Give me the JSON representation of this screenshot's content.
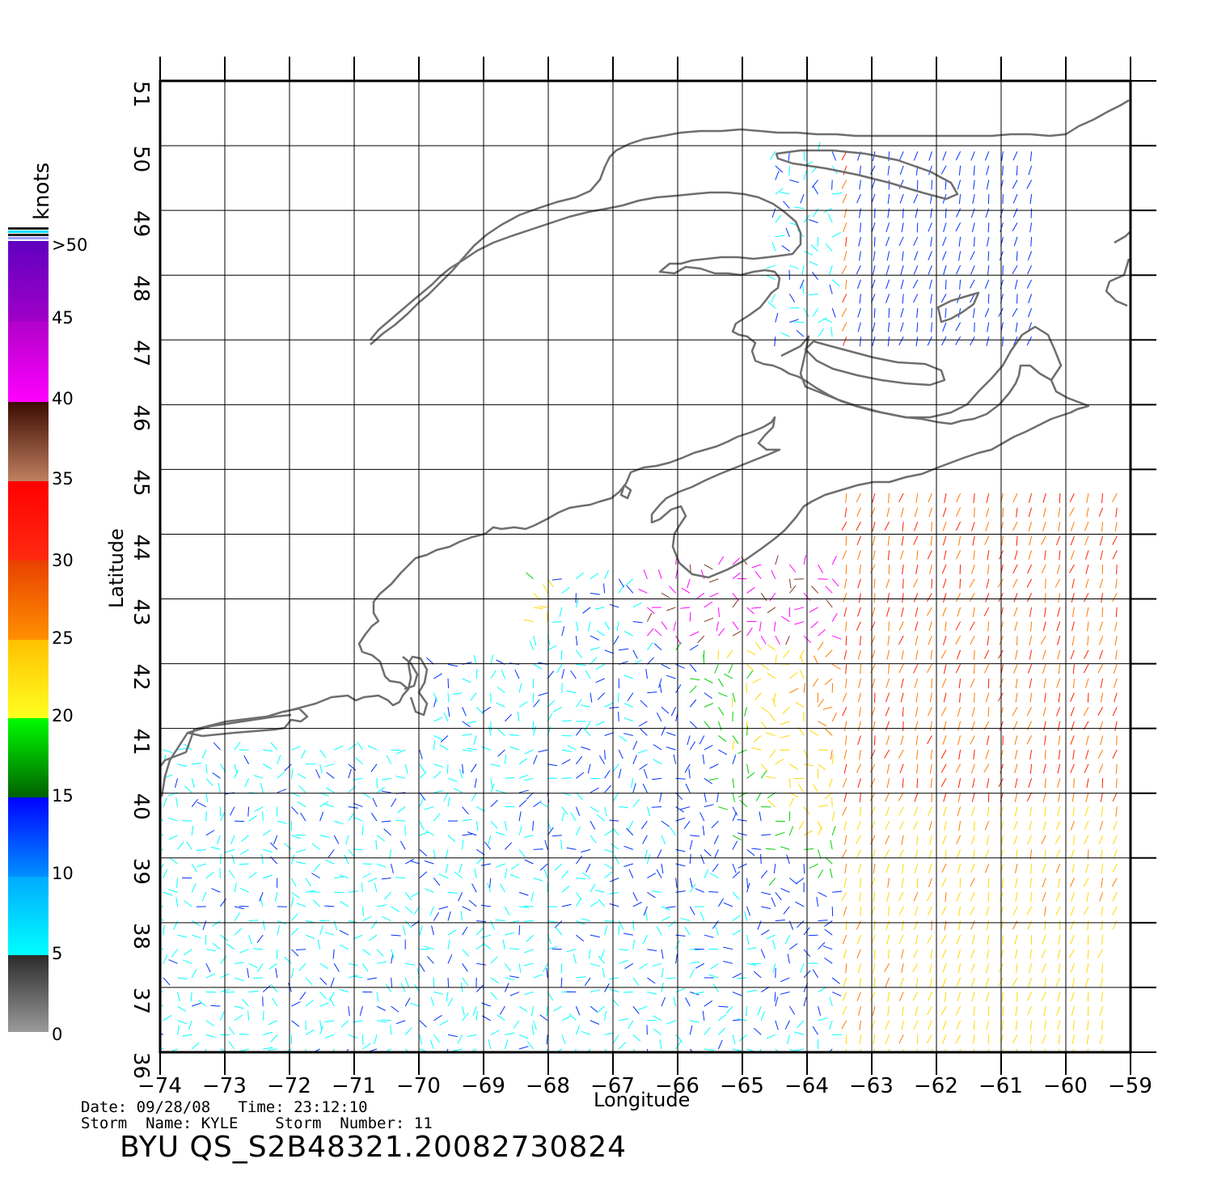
{
  "map": {
    "lon_ticks": [
      "−74",
      "−73",
      "−72",
      "−71",
      "−70",
      "−69",
      "−68",
      "−67",
      "−66",
      "−65",
      "−64",
      "−63",
      "−62",
      "−61",
      "−60",
      "−59"
    ],
    "lat_ticks": [
      "36",
      "37",
      "38",
      "39",
      "40",
      "41",
      "42",
      "43",
      "44",
      "45",
      "46",
      "47",
      "48",
      "49",
      "50",
      "51"
    ],
    "lon_range": [
      -74,
      -59
    ],
    "lat_range": [
      36,
      51
    ],
    "xlabel": "Longitude",
    "ylabel": "Latitude",
    "grid": true,
    "land_outline_color": "#6e6e6e"
  },
  "colorbar": {
    "unit_label": "knots",
    "labels": [
      ">50",
      "45",
      "40",
      "35",
      "30",
      "25",
      "20",
      "15",
      "10",
      "5",
      "0"
    ],
    "bins": [
      {
        "range": "0-5",
        "color": "#6a6a6a"
      },
      {
        "range": "5-10",
        "color": "#00ffff"
      },
      {
        "range": "10-15",
        "color": "#0078ff"
      },
      {
        "range": "15-20",
        "color": "#00d000"
      },
      {
        "range": "20-25",
        "color": "#ffd800"
      },
      {
        "range": "25-30",
        "color": "#ff7a00"
      },
      {
        "range": "30-35",
        "color": "#ff2000"
      },
      {
        "range": "35-40",
        "color": "#7a3a20"
      },
      {
        "range": "40-45",
        "color": "#ff00ff"
      },
      {
        "range": "45-50",
        "color": "#9a00cc"
      },
      {
        "range": ">50",
        "color": "#6a00c8"
      }
    ],
    "rain_flag_colors": [
      "#202020",
      "#00e0ff"
    ]
  },
  "footer": {
    "date_line": "Date: 09/28/08   Time: 23:12:10",
    "storm_line": "Storm  Name: KYLE    Storm  Number: 11",
    "title": "BYU  QS_S2B48321.20082730824"
  }
}
